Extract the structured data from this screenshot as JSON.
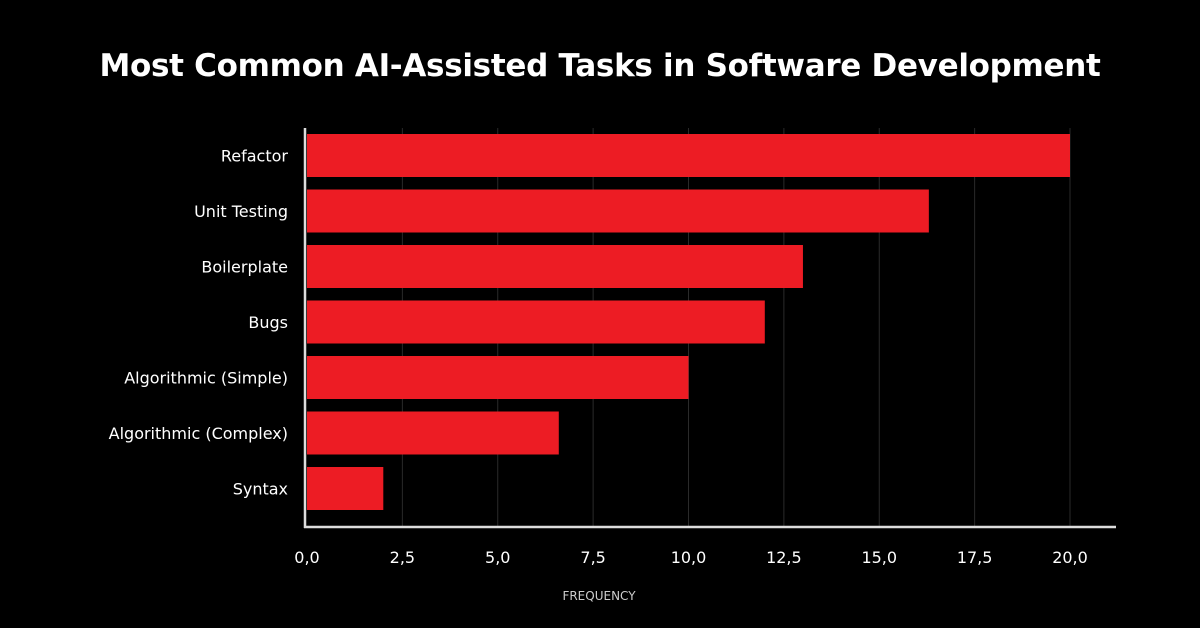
{
  "chart_data": {
    "type": "bar",
    "orientation": "horizontal",
    "title": "Most Common AI-Assisted Tasks in Software Development",
    "xlabel": "FREQUENCY",
    "ylabel": "",
    "categories": [
      "Refactor",
      "Unit Testing",
      "Boilerplate",
      "Bugs",
      "Algorithmic (Simple)",
      "Algorithmic (Complex)",
      "Syntax"
    ],
    "values": [
      20.0,
      16.3,
      13.0,
      12.0,
      10.0,
      6.6,
      2.0
    ],
    "xlim": [
      0,
      20
    ],
    "xticks": [
      "0,0",
      "2,5",
      "5,0",
      "7,5",
      "10,0",
      "12,5",
      "15,0",
      "17,5",
      "20,0"
    ],
    "grid": true,
    "colors": {
      "bar": "#ed1c24",
      "background": "#000000",
      "grid": "#2a2a2a",
      "axis": "#dddddd"
    }
  }
}
